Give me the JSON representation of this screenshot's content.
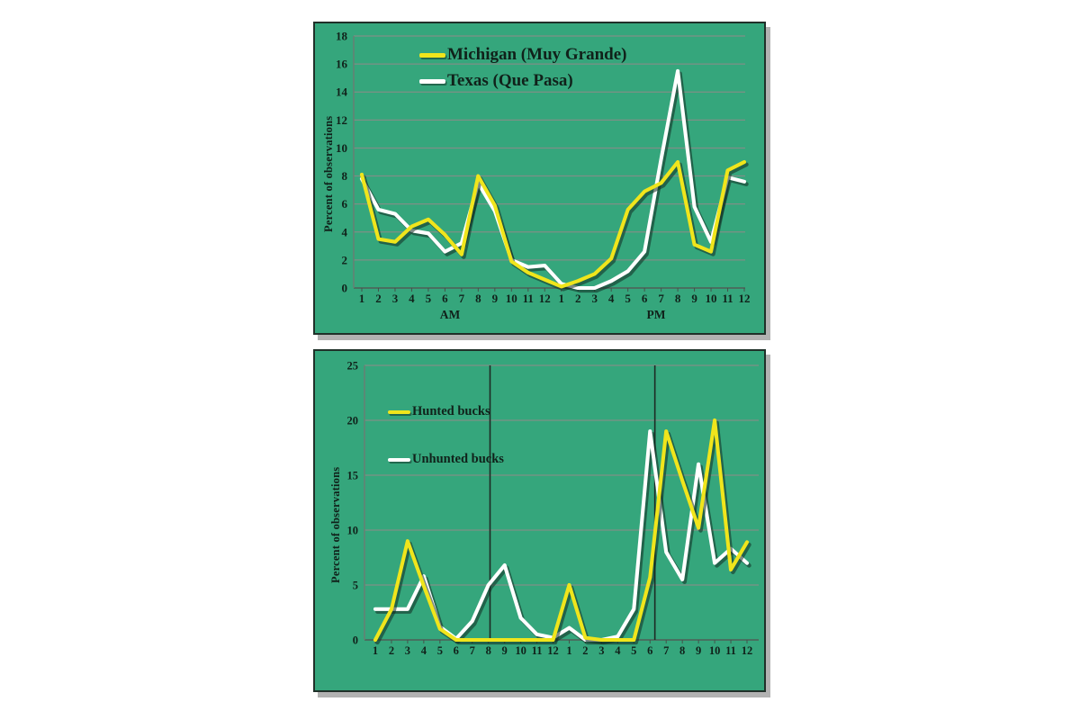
{
  "page": {
    "background": "#ffffff",
    "description": "Two stacked line charts on green panels"
  },
  "chart_data": [
    {
      "type": "line",
      "title": "",
      "y_axis_title": "Percent of observations",
      "ylim": [
        0,
        18
      ],
      "y_ticks": [
        0,
        2,
        4,
        6,
        8,
        10,
        12,
        14,
        16,
        18
      ],
      "x_labels": [
        "1",
        "2",
        "3",
        "4",
        "5",
        "6",
        "7",
        "8",
        "9",
        "10",
        "11",
        "12",
        "1",
        "2",
        "3",
        "4",
        "5",
        "6",
        "7",
        "8",
        "9",
        "10",
        "11",
        "12"
      ],
      "x_sublabels": [
        {
          "label": "AM"
        },
        {
          "label": "PM"
        }
      ],
      "grid": "horizontal",
      "legend_position": "top-left-inside",
      "series": [
        {
          "name": "Texas (Que Pasa)",
          "color": "#ffffff",
          "values": [
            7.8,
            5.6,
            5.3,
            4.1,
            3.9,
            2.6,
            3.2,
            7.5,
            5.5,
            2.0,
            1.5,
            1.6,
            0.3,
            0.0,
            0.0,
            0.5,
            1.2,
            2.6,
            9.2,
            15.5,
            5.8,
            3.3,
            7.9,
            7.6
          ]
        },
        {
          "name": "Michigan (Muy Grande)",
          "color": "#f0e51c",
          "values": [
            8.1,
            3.5,
            3.3,
            4.4,
            4.9,
            3.8,
            2.4,
            8.0,
            5.9,
            1.9,
            1.1,
            0.6,
            0.1,
            0.5,
            1.0,
            2.1,
            5.6,
            6.9,
            7.5,
            9.0,
            3.1,
            2.6,
            8.4,
            9.0
          ]
        }
      ],
      "legend": [
        {
          "label": "Michigan (Muy Grande)"
        },
        {
          "label": "Texas (Que Pasa)"
        }
      ],
      "colors": {
        "panel_bg": "#35a67c",
        "gridline": "#7f8f86",
        "zero_line": "#4f5f57",
        "axis": "#6b7d73",
        "tick": "#44544c",
        "text": "#10211a",
        "line_shadow": "rgba(16,42,32,0.55)"
      }
    },
    {
      "type": "line",
      "title": "",
      "y_axis_title": "Percent of observations",
      "ylim": [
        0,
        25
      ],
      "y_ticks": [
        0,
        5,
        10,
        15,
        20,
        25
      ],
      "x_labels": [
        "1",
        "2",
        "3",
        "4",
        "5",
        "6",
        "7",
        "8",
        "9",
        "10",
        "11",
        "12",
        "1",
        "2",
        "3",
        "4",
        "5",
        "6",
        "7",
        "8",
        "9",
        "10",
        "11",
        "12"
      ],
      "x_sublabels": [],
      "grid": "horizontal",
      "legend_position": "top-left-inside",
      "marker_lines": {
        "description": "vertical reference lines",
        "x_index": [
          7.1,
          17.3
        ]
      },
      "series": [
        {
          "name": "Unhunted bucks",
          "color": "#ffffff",
          "values": [
            2.8,
            2.8,
            2.8,
            5.8,
            1.2,
            0.1,
            1.7,
            5.0,
            6.8,
            2.0,
            0.5,
            0.2,
            1.1,
            0.0,
            0.0,
            0.3,
            2.8,
            19.0,
            8.0,
            5.5,
            16.0,
            7.0,
            8.3,
            7.0
          ]
        },
        {
          "name": "Hunted bucks",
          "color": "#f0e51c",
          "values": [
            0.0,
            2.8,
            9.0,
            4.9,
            1.0,
            0.0,
            0.0,
            0.0,
            0.0,
            0.0,
            0.0,
            0.0,
            5.0,
            0.2,
            0.0,
            0.0,
            0.0,
            5.7,
            19.0,
            14.5,
            10.2,
            20.0,
            6.4,
            8.9
          ]
        }
      ],
      "legend": [
        {
          "label": "Hunted bucks"
        },
        {
          "label": "Unhunted bucks"
        }
      ],
      "colors": {
        "panel_bg": "#35a67c",
        "gridline": "#7f8f86",
        "zero_line": "#4f5f57",
        "axis": "#6b7d73",
        "tick": "#44544c",
        "text": "#10211a",
        "marker_line": "#1d2a24",
        "line_shadow": "rgba(16,42,32,0.55)"
      }
    }
  ]
}
